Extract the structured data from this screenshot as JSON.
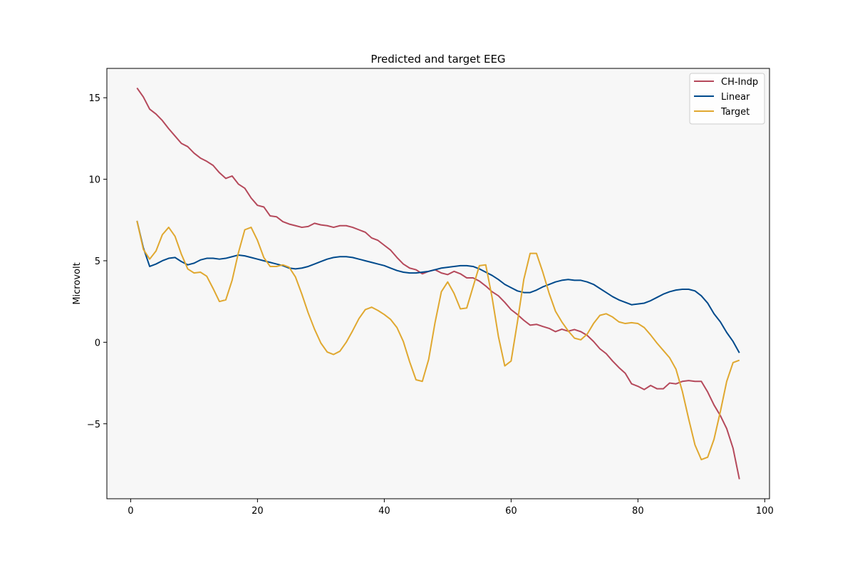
{
  "chart_data": {
    "type": "line",
    "title": "Predicted and target EEG",
    "xlabel": "",
    "ylabel": "Microvolt",
    "xlim": [
      -3.75,
      100.75
    ],
    "ylim": [
      -9.6,
      16.8
    ],
    "xticks": [
      0,
      20,
      40,
      60,
      80,
      100
    ],
    "yticks": [
      -5,
      0,
      5,
      10,
      15
    ],
    "ytick_labels": [
      "−5",
      "0",
      "5",
      "10",
      "15"
    ],
    "grid": false,
    "legend_position": "top-right",
    "background": "#f7f7f7",
    "series": [
      {
        "name": "CH-Indp",
        "color": "#b5495b",
        "values": [
          15.6,
          15.05,
          14.3,
          14.0,
          13.6,
          13.1,
          12.65,
          12.2,
          12.0,
          11.6,
          11.3,
          11.1,
          10.85,
          10.4,
          10.05,
          10.2,
          9.7,
          9.45,
          8.85,
          8.4,
          8.3,
          7.75,
          7.7,
          7.4,
          7.25,
          7.15,
          7.05,
          7.1,
          7.3,
          7.2,
          7.15,
          7.05,
          7.15,
          7.15,
          7.05,
          6.9,
          6.75,
          6.4,
          6.25,
          5.95,
          5.65,
          5.2,
          4.8,
          4.55,
          4.45,
          4.2,
          4.35,
          4.45,
          4.25,
          4.15,
          4.35,
          4.2,
          3.95,
          3.95,
          3.75,
          3.45,
          3.1,
          2.85,
          2.45,
          2.0,
          1.7,
          1.35,
          1.05,
          1.1,
          0.97,
          0.85,
          0.65,
          0.8,
          0.68,
          0.78,
          0.65,
          0.42,
          0.05,
          -0.4,
          -0.7,
          -1.15,
          -1.55,
          -1.9,
          -2.55,
          -2.7,
          -2.9,
          -2.65,
          -2.85,
          -2.85,
          -2.5,
          -2.55,
          -2.4,
          -2.35,
          -2.4,
          -2.4,
          -3.05,
          -3.85,
          -4.5,
          -5.3,
          -6.5,
          -8.4
        ]
      },
      {
        "name": "Linear",
        "color": "#004a8c",
        "values": [
          7.45,
          5.8,
          4.65,
          4.8,
          5.0,
          5.15,
          5.2,
          4.95,
          4.75,
          4.85,
          5.05,
          5.15,
          5.15,
          5.1,
          5.15,
          5.25,
          5.35,
          5.3,
          5.2,
          5.1,
          5.0,
          4.9,
          4.8,
          4.7,
          4.55,
          4.5,
          4.55,
          4.65,
          4.8,
          4.95,
          5.1,
          5.2,
          5.25,
          5.25,
          5.2,
          5.1,
          5.0,
          4.9,
          4.8,
          4.7,
          4.55,
          4.4,
          4.3,
          4.25,
          4.25,
          4.3,
          4.35,
          4.45,
          4.55,
          4.6,
          4.65,
          4.7,
          4.7,
          4.65,
          4.5,
          4.3,
          4.1,
          3.85,
          3.55,
          3.35,
          3.15,
          3.05,
          3.05,
          3.2,
          3.4,
          3.55,
          3.7,
          3.8,
          3.85,
          3.8,
          3.8,
          3.7,
          3.55,
          3.3,
          3.05,
          2.8,
          2.6,
          2.45,
          2.3,
          2.35,
          2.4,
          2.55,
          2.75,
          2.95,
          3.1,
          3.2,
          3.25,
          3.25,
          3.15,
          2.85,
          2.4,
          1.75,
          1.25,
          0.6,
          0.05,
          -0.65
        ]
      },
      {
        "name": "Target",
        "color": "#e0a830",
        "values": [
          7.45,
          5.7,
          5.1,
          5.6,
          6.6,
          7.05,
          6.5,
          5.4,
          4.5,
          4.25,
          4.3,
          4.05,
          3.3,
          2.5,
          2.6,
          3.8,
          5.5,
          6.9,
          7.05,
          6.25,
          5.2,
          4.65,
          4.65,
          4.75,
          4.6,
          4.0,
          2.95,
          1.8,
          0.8,
          -0.05,
          -0.6,
          -0.75,
          -0.55,
          0.0,
          0.7,
          1.45,
          2.0,
          2.15,
          1.95,
          1.7,
          1.4,
          0.9,
          0.05,
          -1.2,
          -2.3,
          -2.4,
          -1.05,
          1.2,
          3.1,
          3.7,
          3.0,
          2.05,
          2.1,
          3.4,
          4.7,
          4.75,
          2.75,
          0.35,
          -1.45,
          -1.15,
          1.25,
          3.85,
          5.45,
          5.45,
          4.3,
          3.0,
          1.9,
          1.25,
          0.7,
          0.25,
          0.15,
          0.5,
          1.15,
          1.65,
          1.75,
          1.55,
          1.25,
          1.15,
          1.2,
          1.15,
          0.9,
          0.45,
          -0.05,
          -0.5,
          -0.95,
          -1.65,
          -3.0,
          -4.7,
          -6.3,
          -7.2,
          -7.05,
          -5.95,
          -4.25,
          -2.4,
          -1.25,
          -1.1
        ]
      }
    ]
  }
}
